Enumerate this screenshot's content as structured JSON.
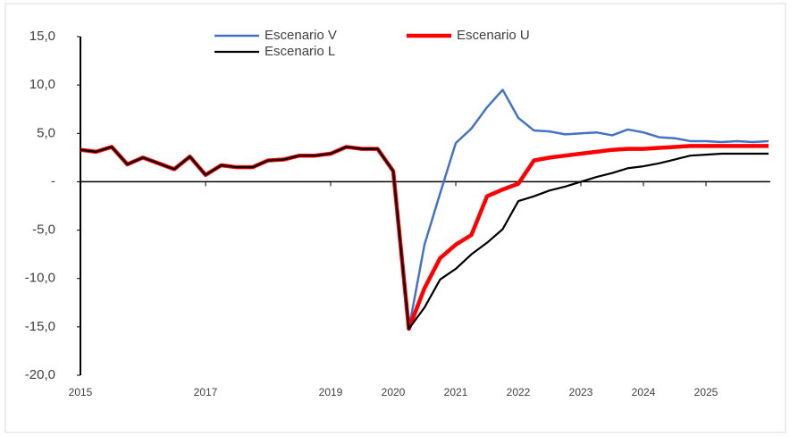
{
  "chart_data": {
    "type": "line",
    "x": [
      2015,
      2015.25,
      2015.5,
      2015.75,
      2016,
      2016.25,
      2016.5,
      2016.75,
      2017,
      2017.25,
      2017.5,
      2017.75,
      2018,
      2018.25,
      2018.5,
      2018.75,
      2019,
      2019.25,
      2019.5,
      2019.75,
      2020,
      2020.25,
      2020.5,
      2020.75,
      2021,
      2021.25,
      2021.5,
      2021.75,
      2022,
      2022.25,
      2022.5,
      2022.75,
      2023,
      2023.25,
      2023.5,
      2023.75,
      2024,
      2024.25,
      2024.5,
      2024.75,
      2025,
      2025.25,
      2025.5,
      2025.75,
      2026
    ],
    "series": [
      {
        "name": "Escenario V",
        "color": "#4472c4",
        "values": [
          3.3,
          3.1,
          3.6,
          1.8,
          2.5,
          1.9,
          1.3,
          2.6,
          0.7,
          1.7,
          1.5,
          1.5,
          2.2,
          2.3,
          2.7,
          2.7,
          2.9,
          3.6,
          3.4,
          3.4,
          1.1,
          -15.2,
          -6.5,
          -1.2,
          4.0,
          5.5,
          7.7,
          9.5,
          6.6,
          5.3,
          5.2,
          4.9,
          5.0,
          5.1,
          4.8,
          5.4,
          5.1,
          4.6,
          4.5,
          4.2,
          4.2,
          4.1,
          4.2,
          4.1,
          4.2
        ]
      },
      {
        "name": "Escenario U",
        "color": "#ff0000",
        "values": [
          3.3,
          3.1,
          3.6,
          1.8,
          2.5,
          1.9,
          1.3,
          2.6,
          0.7,
          1.7,
          1.5,
          1.5,
          2.2,
          2.3,
          2.7,
          2.7,
          2.9,
          3.6,
          3.4,
          3.4,
          1.1,
          -15.2,
          -11.0,
          -7.9,
          -6.5,
          -5.5,
          -1.5,
          -0.8,
          -0.2,
          2.2,
          2.5,
          2.7,
          2.9,
          3.1,
          3.3,
          3.4,
          3.4,
          3.5,
          3.6,
          3.7,
          3.7,
          3.7,
          3.7,
          3.7,
          3.7
        ]
      },
      {
        "name": "Escenario L",
        "color": "#000000",
        "values": [
          3.3,
          3.1,
          3.6,
          1.8,
          2.5,
          1.9,
          1.3,
          2.6,
          0.7,
          1.7,
          1.5,
          1.5,
          2.2,
          2.3,
          2.7,
          2.7,
          2.9,
          3.6,
          3.4,
          3.4,
          1.1,
          -15.2,
          -13.0,
          -10.1,
          -9.0,
          -7.5,
          -6.3,
          -4.9,
          -2.0,
          -1.5,
          -0.9,
          -0.5,
          0.0,
          0.5,
          0.9,
          1.4,
          1.6,
          1.9,
          2.3,
          2.7,
          2.8,
          2.9,
          2.9,
          2.9,
          2.9
        ]
      }
    ],
    "xlim": [
      2015,
      2026
    ],
    "xticks": [
      2015,
      2017,
      2019,
      2020,
      2021,
      2022,
      2023,
      2024,
      2025
    ],
    "ylim": [
      -20,
      15
    ],
    "yticks": [
      {
        "value": -20,
        "label": "-20,0"
      },
      {
        "value": -15,
        "label": "-15,0"
      },
      {
        "value": -10,
        "label": "-10,0"
      },
      {
        "value": -5,
        "label": "-5,0"
      },
      {
        "value": 0,
        "label": "-"
      },
      {
        "value": 5,
        "label": "5,0"
      },
      {
        "value": 10,
        "label": "10,0"
      },
      {
        "value": 15,
        "label": "15,0"
      }
    ],
    "legend": "top"
  }
}
